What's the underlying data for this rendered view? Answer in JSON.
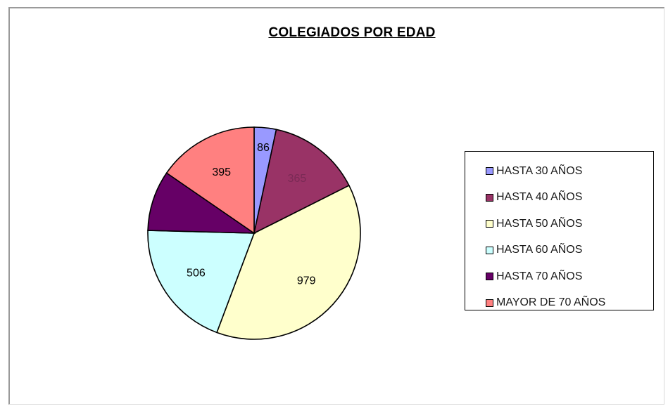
{
  "chart_data": {
    "type": "pie",
    "title": "COLEGIADOS POR EDAD",
    "categories": [
      "HASTA 30 AÑOS",
      "HASTA 40 AÑOS",
      "HASTA 50 AÑOS",
      "HASTA 60 AÑOS",
      "HASTA 70 AÑOS",
      "MAYOR DE 70 AÑOS"
    ],
    "values": [
      86,
      365,
      979,
      506,
      236,
      395
    ],
    "data_labels": [
      "86",
      "365",
      "979",
      "506",
      "",
      "395"
    ],
    "colors": [
      "#9999ff",
      "#993366",
      "#ffffcc",
      "#ccffff",
      "#660066",
      "#ff8080"
    ],
    "label_colors": [
      "#000000",
      "#7a2a55",
      "#000000",
      "#000000",
      "#4a004a",
      "#000000"
    ],
    "legend_position": "right",
    "start_angle_deg": 0,
    "direction": "clockwise"
  }
}
